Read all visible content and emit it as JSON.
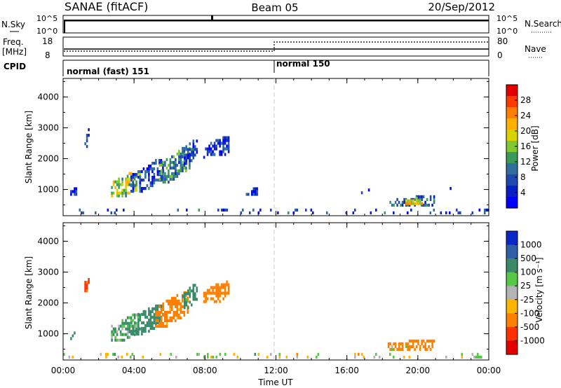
{
  "header": {
    "title": "SANAE (fitACF)",
    "beam": "Beam 05",
    "date": "20/Sep/2012"
  },
  "nsky_panel": {
    "left_label": "N.Sky",
    "left_ticks": [
      "10^5",
      "10^0"
    ],
    "right_label": "N.Search",
    "right_ticks": [
      "10^5",
      "10^0"
    ]
  },
  "freq_panel": {
    "left_label": "Freq.",
    "left_unit": "[MHz]",
    "left_ticks": [
      "18",
      "8"
    ],
    "right_label": "Nave",
    "right_ticks": [
      "80",
      "0"
    ]
  },
  "cpid_panel": {
    "label": "CPID",
    "modes": [
      {
        "name": "normal (fast) 151",
        "start_hour": 0,
        "end_hour": 12
      },
      {
        "name": "normal 150",
        "start_hour": 12,
        "end_hour": 24
      }
    ]
  },
  "xaxis": {
    "label": "Time UT",
    "ticks": [
      "00:00",
      "04:00",
      "08:00",
      "12:00",
      "16:00",
      "20:00",
      "00:00"
    ],
    "range_hours": [
      0,
      24
    ]
  },
  "power_colorbar": {
    "label": "Power [dB]",
    "ticks": [
      "28",
      "24",
      "20",
      "16",
      "12",
      "8",
      "4"
    ],
    "colors": [
      "#e00000",
      "#ff3a00",
      "#ff7f00",
      "#ffb000",
      "#d7d200",
      "#80c830",
      "#3a9a5a",
      "#2f6e9e",
      "#1f48b0",
      "#0a1ec8",
      "#0000ff"
    ]
  },
  "velocity_colorbar": {
    "label": "Velocity [m s⁻¹]",
    "ticks": [
      "1000",
      "500",
      "100",
      "25",
      "-25",
      "-100",
      "-500",
      "-1000"
    ],
    "colors": [
      "#0a28c8",
      "#2f5fa8",
      "#3a8a6a",
      "#55c845",
      "#b4b4b4",
      "#ffb400",
      "#ff7f00",
      "#ff3000",
      "#e00000"
    ]
  },
  "chart_data": [
    {
      "type": "heatmap",
      "title": "",
      "xlabel": "Time UT",
      "ylabel": "Slant Range [km]",
      "xlim_hours": [
        0,
        24
      ],
      "ylim": [
        150,
        4600
      ],
      "yticks": [
        1000,
        2000,
        3000,
        4000
      ],
      "value_label": "Power [dB]",
      "regions": [
        {
          "t0": 2.7,
          "t1": 4.3,
          "r0": 750,
          "r1": 1550,
          "value": 16
        },
        {
          "t0": 3.8,
          "t1": 5.6,
          "r0": 900,
          "r1": 1900,
          "value": 8
        },
        {
          "t0": 5.4,
          "t1": 7.1,
          "r0": 1200,
          "r1": 2300,
          "value": 12
        },
        {
          "t0": 6.7,
          "t1": 7.5,
          "r0": 1800,
          "r1": 2600,
          "value": 8
        },
        {
          "t0": 7.9,
          "t1": 9.3,
          "r0": 2000,
          "r1": 2650,
          "value": 6
        },
        {
          "t0": 0.4,
          "t1": 0.7,
          "r0": 800,
          "r1": 1000,
          "value": 5
        },
        {
          "t0": 1.2,
          "t1": 1.4,
          "r0": 2350,
          "r1": 2950,
          "value": 6
        },
        {
          "t0": 10.3,
          "t1": 10.9,
          "r0": 800,
          "r1": 1000,
          "value": 6
        },
        {
          "t0": 18.3,
          "t1": 20.9,
          "r0": 450,
          "r1": 750,
          "value": 10
        },
        {
          "t0": 19.2,
          "t1": 20.2,
          "r0": 500,
          "r1": 700,
          "value": 20
        },
        {
          "t0": 16.3,
          "t1": 17.9,
          "r0": 850,
          "r1": 1000,
          "value": 5
        },
        {
          "t0": 21.5,
          "t1": 22.0,
          "r0": 900,
          "r1": 1050,
          "value": 6
        },
        {
          "t0": 0.0,
          "t1": 24.0,
          "r0": 200,
          "r1": 300,
          "value": 8
        }
      ]
    },
    {
      "type": "heatmap",
      "title": "",
      "xlabel": "Time UT",
      "ylabel": "Slant Range [km]",
      "xlim_hours": [
        0,
        24
      ],
      "ylim": [
        150,
        4600
      ],
      "yticks": [
        1000,
        2000,
        3000,
        4000
      ],
      "value_label": "Velocity [m s⁻¹]",
      "regions": [
        {
          "t0": 2.7,
          "t1": 4.3,
          "r0": 750,
          "r1": 1600,
          "value": 100
        },
        {
          "t0": 3.8,
          "t1": 5.6,
          "r0": 950,
          "r1": 1900,
          "value": 300
        },
        {
          "t0": 5.2,
          "t1": 7.0,
          "r0": 1200,
          "r1": 2300,
          "value": -200
        },
        {
          "t0": 6.7,
          "t1": 7.5,
          "r0": 1800,
          "r1": 2600,
          "value": 200
        },
        {
          "t0": 7.9,
          "t1": 9.3,
          "r0": 2000,
          "r1": 2650,
          "value": -300
        },
        {
          "t0": 1.2,
          "t1": 1.4,
          "r0": 2350,
          "r1": 2950,
          "value": -500
        },
        {
          "t0": 0.4,
          "t1": 0.7,
          "r0": 800,
          "r1": 1000,
          "value": 300
        },
        {
          "t0": 18.3,
          "t1": 20.9,
          "r0": 450,
          "r1": 800,
          "value": -300
        },
        {
          "t0": 18.5,
          "t1": 19.5,
          "r0": 450,
          "r1": 600,
          "value": 0
        },
        {
          "t0": 21.5,
          "t1": 22.0,
          "r0": 900,
          "r1": 1050,
          "value": -300
        },
        {
          "t0": 0.0,
          "t1": 24.0,
          "r0": 200,
          "r1": 300,
          "value": 0
        }
      ]
    }
  ]
}
